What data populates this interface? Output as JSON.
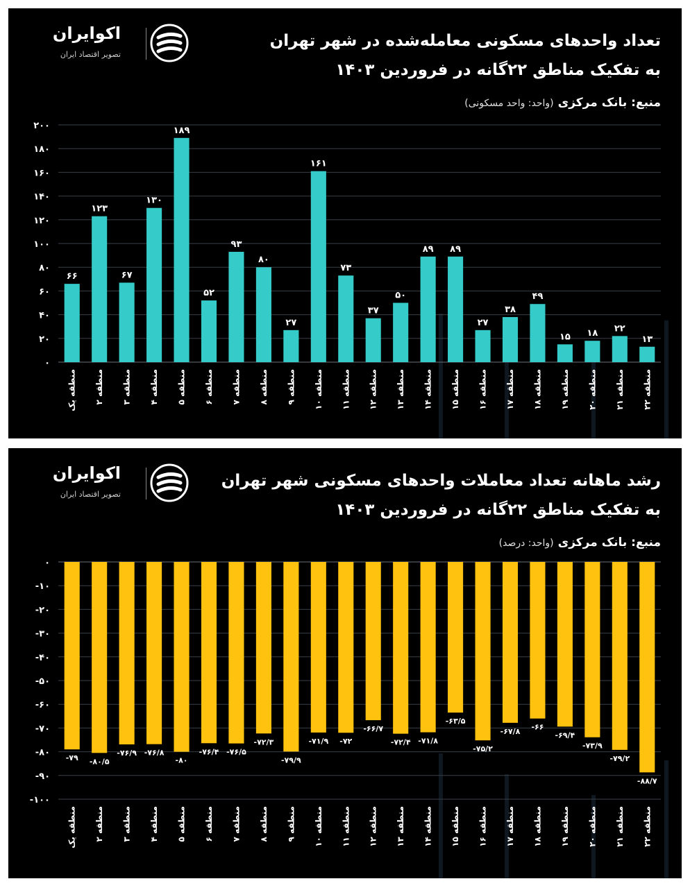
{
  "brand": {
    "name": "اکوایران",
    "tagline": "تصویر اقتصاد ایران"
  },
  "chart1": {
    "title_line1": "تعداد واحدهای مسکونی معامله‌شده در شهر تهران",
    "title_line2": "به تفکیک مناطق ۲۲گانه در فروردین ۱۴۰۳",
    "source": "منبع: بانک مرکزی",
    "unit": "(واحد: واحد مسکونی)",
    "bar_color": "#35cbc8"
  },
  "chart2": {
    "title_line1": "رشد ماهانه تعداد معاملات واحدهای مسکونی شهر تهران",
    "title_line2": "به تفکیک مناطق ۲۲گانه در فروردین ۱۴۰۳",
    "source": "منبع: بانک مرکزی",
    "unit": "(واحد: درصد)",
    "bar_color": "#ffc20e"
  },
  "chart_data": [
    {
      "type": "bar",
      "categories": [
        "منطقه یک",
        "منطقه ۲",
        "منطقه ۳",
        "منطقه ۴",
        "منطقه ۵",
        "منطقه ۶",
        "منطقه ۷",
        "منطقه ۸",
        "منطقه ۹",
        "منطقه ۱۰",
        "منطقه ۱۱",
        "منطقه ۱۲",
        "منطقه ۱۳",
        "منطقه ۱۴",
        "منطقه ۱۵",
        "منطقه ۱۶",
        "منطقه ۱۷",
        "منطقه ۱۸",
        "منطقه ۱۹",
        "منطقه ۲۰",
        "منطقه ۲۱",
        "منطقه ۲۲"
      ],
      "values": [
        66,
        123,
        67,
        130,
        189,
        52,
        93,
        80,
        27,
        161,
        73,
        37,
        50,
        89,
        89,
        27,
        38,
        49,
        15,
        18,
        22,
        13
      ],
      "value_labels": [
        "۶۶",
        "۱۲۳",
        "۶۷",
        "۱۳۰",
        "۱۸۹",
        "۵۲",
        "۹۳",
        "۸۰",
        "۲۷",
        "۱۶۱",
        "۷۳",
        "۳۷",
        "۵۰",
        "۸۹",
        "۸۹",
        "۲۷",
        "۳۸",
        "۴۹",
        "۱۵",
        "۱۸",
        "۲۲",
        "۱۳"
      ],
      "ylim": [
        0,
        200
      ],
      "yticks": [
        0,
        20,
        40,
        60,
        80,
        100,
        120,
        140,
        160,
        180,
        200
      ],
      "ytick_labels": [
        "۰",
        "۲۰",
        "۴۰",
        "۶۰",
        "۸۰",
        "۱۰۰",
        "۱۲۰",
        "۱۴۰",
        "۱۶۰",
        "۱۸۰",
        "۲۰۰"
      ],
      "grid": true
    },
    {
      "type": "bar",
      "categories": [
        "منطقه یک",
        "منطقه ۲",
        "منطقه ۳",
        "منطقه ۴",
        "منطقه ۵",
        "منطقه ۶",
        "منطقه ۷",
        "منطقه ۸",
        "منطقه ۹",
        "منطقه ۱۰",
        "منطقه ۱۱",
        "منطقه ۱۲",
        "منطقه ۱۳",
        "منطقه ۱۴",
        "منطقه ۱۵",
        "منطقه ۱۶",
        "منطقه ۱۷",
        "منطقه ۱۸",
        "منطقه ۱۹",
        "منطقه ۲۰",
        "منطقه ۲۱",
        "منطقه ۲۲"
      ],
      "values": [
        -79,
        -80.5,
        -76.9,
        -76.8,
        -80,
        -76.4,
        -76.5,
        -72.3,
        -79.9,
        -71.9,
        -72,
        -66.7,
        -72.4,
        -71.8,
        -63.5,
        -75.2,
        -67.8,
        -66,
        -69.4,
        -73.9,
        -79.2,
        -88.7
      ],
      "value_labels": [
        "-۷۹",
        "-۸۰/۵",
        "-۷۶/۹",
        "-۷۶/۸",
        "-۸۰",
        "-۷۶/۴",
        "-۷۶/۵",
        "-۷۲/۳",
        "-۷۹/۹",
        "-۷۱/۹",
        "-۷۲",
        "-۶۶/۷",
        "-۷۲/۴",
        "-۷۱/۸",
        "-۶۳/۵",
        "-۷۵/۲",
        "-۶۷/۸",
        "-۶۶",
        "-۶۹/۴",
        "-۷۳/۹",
        "-۷۹/۲",
        "-۸۸/۷"
      ],
      "ylim": [
        -100,
        0
      ],
      "yticks": [
        0,
        -10,
        -20,
        -30,
        -40,
        -50,
        -60,
        -70,
        -80,
        -90,
        -100
      ],
      "ytick_labels": [
        "۰",
        "-۱۰",
        "-۲۰",
        "-۳۰",
        "-۴۰",
        "-۵۰",
        "-۶۰",
        "-۷۰",
        "-۸۰",
        "-۹۰",
        "-۱۰۰"
      ],
      "grid": true
    }
  ]
}
